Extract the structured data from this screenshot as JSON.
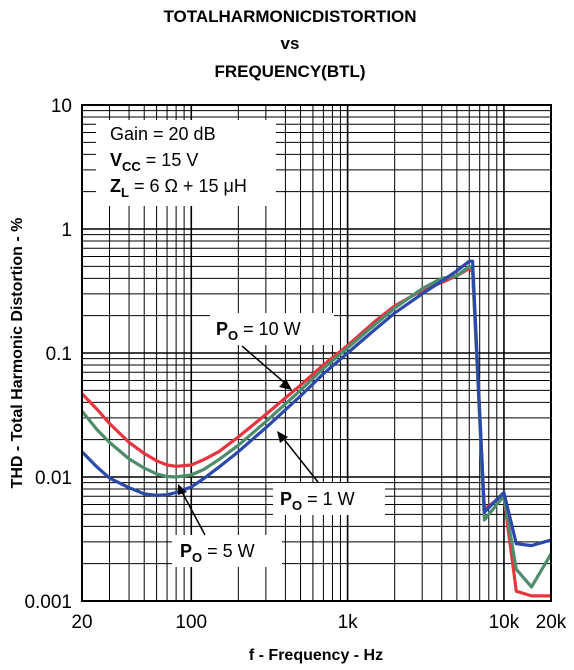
{
  "chart_data": {
    "type": "line",
    "title_lines": [
      "TOTALHARMONICDISTORTION",
      "vs",
      "FREQUENCY(BTL)"
    ],
    "xlabel": "f - Frequency - Hz",
    "ylabel": "THD - Total Harmonic Distortion - %",
    "x_scale": "log",
    "y_scale": "log",
    "xlim": [
      20,
      20000
    ],
    "ylim": [
      0.001,
      10
    ],
    "x_ticks": [
      {
        "value": 20,
        "label": "20"
      },
      {
        "value": 100,
        "label": "100"
      },
      {
        "value": 1000,
        "label": "1k"
      },
      {
        "value": 10000,
        "label": "10k"
      },
      {
        "value": 20000,
        "label": "20k"
      }
    ],
    "y_ticks": [
      {
        "value": 10,
        "label": "10"
      },
      {
        "value": 1,
        "label": "1"
      },
      {
        "value": 0.1,
        "label": "0.1"
      },
      {
        "value": 0.01,
        "label": "0.01"
      },
      {
        "value": 0.001,
        "label": "0.001"
      }
    ],
    "grid": true,
    "conditions": {
      "gain": "Gain = 20 dB",
      "vcc_main": "V",
      "vcc_sub": "CC",
      "vcc_value": " = 15 V",
      "zl_main": "Z",
      "zl_sub": "L",
      "zl_value": " = 6 Ω + 15 μH"
    },
    "annotations": [
      {
        "main": "P",
        "sub": "O",
        "value": " = 10 W",
        "series": "red"
      },
      {
        "main": "P",
        "sub": "O",
        "value": " = 1 W",
        "series": "blue"
      },
      {
        "main": "P",
        "sub": "O",
        "value": " = 5 W",
        "series": "green"
      }
    ],
    "series": [
      {
        "color": "#e8343f",
        "x": [
          20,
          25,
          30,
          40,
          50,
          60,
          70,
          80,
          100,
          120,
          150,
          200,
          300,
          500,
          700,
          1000,
          1500,
          2000,
          3000,
          4000,
          5000,
          6000,
          6300,
          7500,
          9000,
          10000,
          12000,
          15000,
          20000
        ],
        "y": [
          0.047,
          0.035,
          0.027,
          0.019,
          0.0155,
          0.0135,
          0.0125,
          0.0122,
          0.0125,
          0.0138,
          0.016,
          0.021,
          0.032,
          0.055,
          0.08,
          0.115,
          0.18,
          0.24,
          0.32,
          0.37,
          0.42,
          0.48,
          0.45,
          0.0055,
          0.0065,
          0.007,
          0.0012,
          0.0011,
          0.0011
        ]
      },
      {
        "color": "#4e8c6c",
        "x": [
          20,
          25,
          30,
          40,
          50,
          60,
          70,
          80,
          100,
          120,
          150,
          200,
          300,
          500,
          700,
          1000,
          1500,
          2000,
          3000,
          4000,
          5000,
          6000,
          6300,
          7500,
          9000,
          10000,
          12000,
          15000,
          20000
        ],
        "y": [
          0.034,
          0.024,
          0.019,
          0.014,
          0.0118,
          0.0106,
          0.0101,
          0.01,
          0.0104,
          0.0115,
          0.0138,
          0.018,
          0.028,
          0.05,
          0.075,
          0.11,
          0.17,
          0.23,
          0.33,
          0.4,
          0.42,
          0.5,
          0.47,
          0.0045,
          0.006,
          0.007,
          0.0018,
          0.0013,
          0.0024
        ]
      },
      {
        "color": "#2b49a8",
        "x": [
          20,
          25,
          30,
          40,
          50,
          60,
          70,
          80,
          100,
          120,
          150,
          200,
          300,
          500,
          700,
          1000,
          1500,
          2000,
          3000,
          4000,
          5000,
          6000,
          6300,
          7500,
          9000,
          10000,
          12000,
          15000,
          20000
        ],
        "y": [
          0.016,
          0.012,
          0.0098,
          0.0082,
          0.0073,
          0.0071,
          0.0072,
          0.0075,
          0.0083,
          0.0097,
          0.012,
          0.016,
          0.025,
          0.045,
          0.068,
          0.1,
          0.155,
          0.21,
          0.3,
          0.38,
          0.46,
          0.55,
          0.55,
          0.0052,
          0.0066,
          0.0075,
          0.0029,
          0.0028,
          0.0031
        ]
      }
    ]
  }
}
